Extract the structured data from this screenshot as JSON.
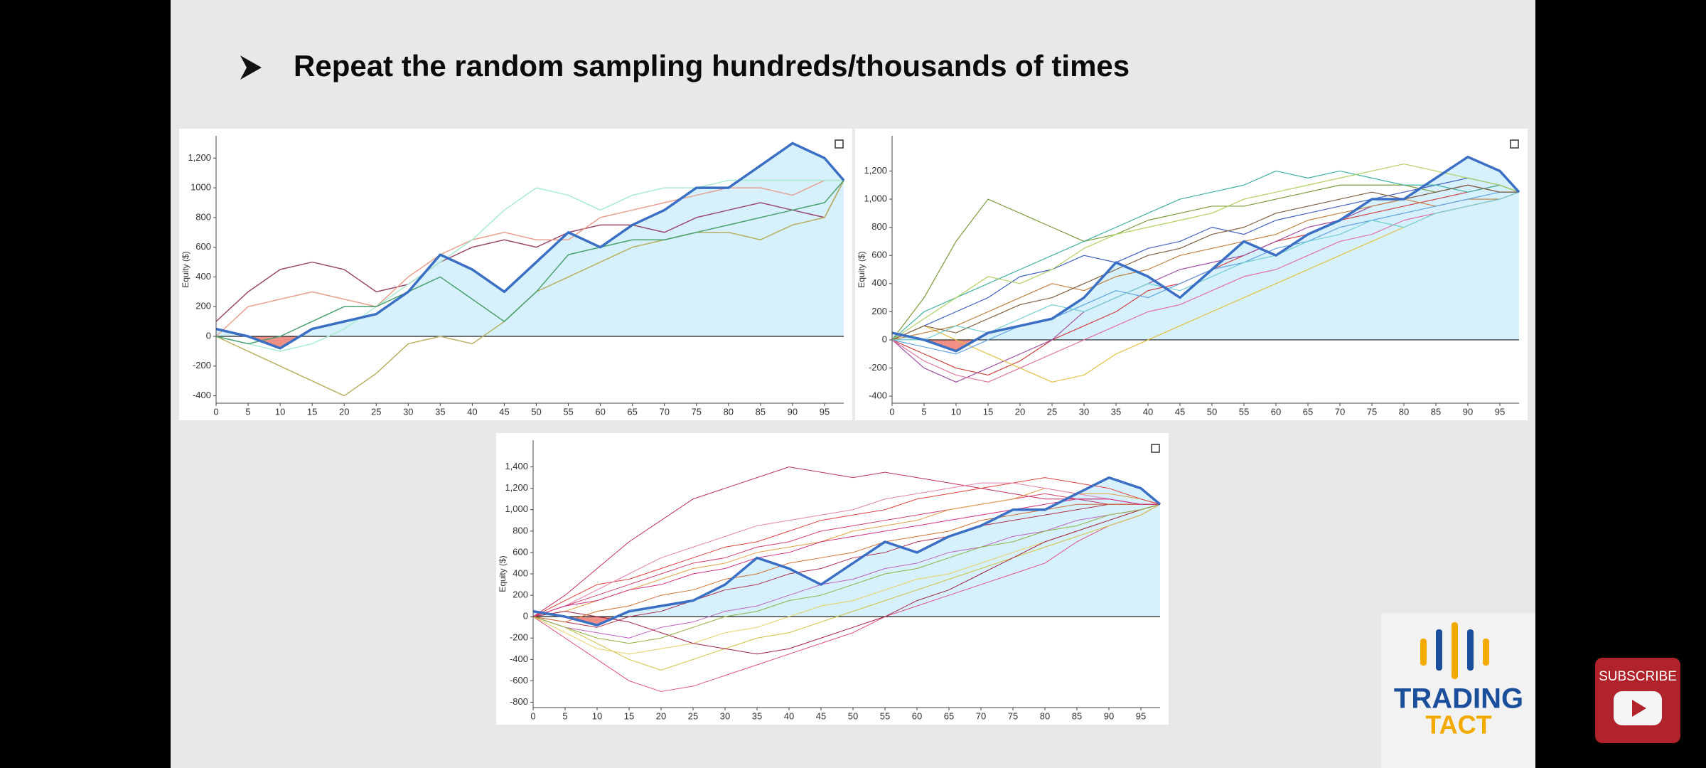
{
  "header": {
    "title": "Repeat the random sampling hundreds/thousands of times"
  },
  "chart_data": [
    {
      "type": "line",
      "y_label": "Equity ($)",
      "x": [
        0,
        5,
        10,
        15,
        20,
        25,
        30,
        35,
        40,
        45,
        50,
        55,
        60,
        65,
        70,
        75,
        80,
        85,
        90,
        95,
        98
      ],
      "xlim": [
        0,
        98
      ],
      "ylim": [
        -450,
        1350
      ],
      "xticks": [
        0,
        5,
        10,
        15,
        20,
        25,
        30,
        35,
        40,
        45,
        50,
        55,
        60,
        65,
        70,
        75,
        80,
        85,
        90,
        95
      ],
      "yticks": [
        -400,
        -200,
        0,
        200,
        400,
        600,
        800,
        1000,
        {
          "value": 1200,
          "label": "1,200"
        }
      ],
      "fill": {
        "positive_color": "#d6f1fb",
        "negative_color": "#ef8f86"
      },
      "series": [
        {
          "color": "#9b4a6e",
          "width": 1.5,
          "values": [
            100,
            300,
            450,
            500,
            450,
            300,
            350,
            500,
            600,
            650,
            600,
            700,
            750,
            750,
            700,
            800,
            850,
            900,
            850,
            800,
            1050
          ]
        },
        {
          "color": "#e8a090",
          "width": 1.5,
          "values": [
            0,
            200,
            250,
            300,
            250,
            200,
            400,
            550,
            650,
            700,
            650,
            650,
            800,
            850,
            900,
            950,
            1000,
            1000,
            950,
            1050,
            1050
          ]
        },
        {
          "color": "#a8ecd0",
          "width": 1.5,
          "values": [
            0,
            -50,
            -100,
            -50,
            50,
            200,
            350,
            500,
            650,
            850,
            1000,
            950,
            850,
            950,
            1000,
            1000,
            1050,
            1050,
            1050,
            1050,
            1050
          ]
        },
        {
          "color": "#b8b060",
          "width": 1.5,
          "values": [
            0,
            -100,
            -200,
            -300,
            -400,
            -250,
            -50,
            0,
            -50,
            100,
            300,
            400,
            500,
            600,
            650,
            700,
            700,
            650,
            750,
            800,
            1050
          ]
        },
        {
          "color": "#4aa070",
          "width": 1.5,
          "values": [
            0,
            -50,
            0,
            100,
            200,
            200,
            300,
            400,
            250,
            100,
            300,
            550,
            600,
            650,
            650,
            700,
            750,
            800,
            850,
            900,
            1050
          ]
        },
        {
          "color": "#3b6fc4",
          "width": 3.5,
          "area": true,
          "values": [
            50,
            0,
            -80,
            50,
            100,
            150,
            300,
            550,
            450,
            300,
            500,
            700,
            600,
            750,
            850,
            1000,
            1000,
            1150,
            1300,
            1200,
            1050
          ]
        }
      ]
    },
    {
      "type": "line",
      "y_label": "Equity ($)",
      "x": [
        0,
        5,
        10,
        15,
        20,
        25,
        30,
        35,
        40,
        45,
        50,
        55,
        60,
        65,
        70,
        75,
        80,
        85,
        90,
        95,
        98
      ],
      "xlim": [
        0,
        98
      ],
      "ylim": [
        -450,
        1450
      ],
      "xticks": [
        0,
        5,
        10,
        15,
        20,
        25,
        30,
        35,
        40,
        45,
        50,
        55,
        60,
        65,
        70,
        75,
        80,
        85,
        90,
        95
      ],
      "yticks": [
        -400,
        -200,
        0,
        200,
        400,
        600,
        800,
        {
          "value": 1000,
          "label": "1,000"
        },
        {
          "value": 1200,
          "label": "1,200"
        }
      ],
      "fill": {
        "positive_color": "#d6f1fb",
        "negative_color": "#ef8f86"
      },
      "series": [
        {
          "color": "#7a9a3a",
          "width": 1.2,
          "values": [
            0,
            300,
            700,
            1000,
            900,
            800,
            700,
            750,
            850,
            900,
            950,
            950,
            1000,
            1050,
            1100,
            1100,
            1100,
            1050,
            1100,
            1050,
            1050
          ]
        },
        {
          "color": "#d04040",
          "width": 1.2,
          "values": [
            0,
            -100,
            -200,
            -250,
            -150,
            0,
            100,
            200,
            350,
            400,
            500,
            600,
            700,
            750,
            850,
            900,
            950,
            1000,
            1050,
            1100,
            1050
          ]
        },
        {
          "color": "#4060c0",
          "width": 1.2,
          "values": [
            0,
            100,
            200,
            300,
            450,
            500,
            600,
            550,
            650,
            700,
            800,
            750,
            850,
            900,
            950,
            1000,
            1050,
            1100,
            1150,
            1100,
            1050
          ]
        },
        {
          "color": "#a050a0",
          "width": 1.2,
          "values": [
            0,
            -200,
            -300,
            -200,
            -100,
            0,
            200,
            300,
            400,
            500,
            550,
            600,
            700,
            800,
            850,
            950,
            1000,
            1050,
            1100,
            1050,
            1050
          ]
        },
        {
          "color": "#e0c040",
          "width": 1.2,
          "values": [
            0,
            100,
            0,
            -100,
            -200,
            -300,
            -250,
            -100,
            0,
            100,
            200,
            300,
            400,
            500,
            600,
            700,
            800,
            900,
            950,
            1000,
            1050
          ]
        },
        {
          "color": "#40b0a0",
          "width": 1.2,
          "values": [
            0,
            200,
            300,
            400,
            500,
            600,
            700,
            800,
            900,
            1000,
            1050,
            1100,
            1200,
            1150,
            1200,
            1150,
            1100,
            1100,
            1050,
            1100,
            1050
          ]
        },
        {
          "color": "#c08040",
          "width": 1.2,
          "values": [
            0,
            50,
            100,
            200,
            300,
            400,
            350,
            450,
            500,
            600,
            650,
            700,
            750,
            850,
            900,
            950,
            1000,
            950,
            1000,
            1000,
            1050
          ]
        },
        {
          "color": "#60a0e0",
          "width": 1.2,
          "values": [
            0,
            -50,
            -100,
            0,
            100,
            150,
            250,
            350,
            300,
            400,
            500,
            550,
            650,
            700,
            800,
            850,
            900,
            950,
            1000,
            1050,
            1050
          ]
        },
        {
          "color": "#b0d060",
          "width": 1.2,
          "values": [
            0,
            150,
            300,
            450,
            400,
            500,
            650,
            750,
            800,
            850,
            900,
            1000,
            1050,
            1100,
            1150,
            1200,
            1250,
            1200,
            1150,
            1100,
            1050
          ]
        },
        {
          "color": "#e070a0",
          "width": 1.2,
          "values": [
            0,
            -150,
            -250,
            -300,
            -200,
            -100,
            0,
            100,
            200,
            250,
            350,
            450,
            500,
            600,
            700,
            750,
            850,
            900,
            950,
            1000,
            1050
          ]
        },
        {
          "color": "#806040",
          "width": 1.2,
          "values": [
            0,
            100,
            50,
            150,
            250,
            300,
            400,
            500,
            600,
            650,
            750,
            800,
            900,
            950,
            1000,
            1050,
            1000,
            1050,
            1100,
            1050,
            1050
          ]
        },
        {
          "color": "#70d0d0",
          "width": 1.2,
          "values": [
            0,
            0,
            100,
            50,
            150,
            250,
            200,
            300,
            400,
            350,
            450,
            550,
            600,
            700,
            750,
            850,
            800,
            900,
            950,
            1000,
            1050
          ]
        },
        {
          "color": "#3b6fc4",
          "width": 3.5,
          "area": true,
          "values": [
            50,
            0,
            -80,
            50,
            100,
            150,
            300,
            550,
            450,
            300,
            500,
            700,
            600,
            750,
            850,
            1000,
            1000,
            1150,
            1300,
            1200,
            1050
          ]
        }
      ]
    },
    {
      "type": "line",
      "y_label": "Equity ($)",
      "x": [
        0,
        5,
        10,
        15,
        20,
        25,
        30,
        35,
        40,
        45,
        50,
        55,
        60,
        65,
        70,
        75,
        80,
        85,
        90,
        95,
        98
      ],
      "xlim": [
        0,
        98
      ],
      "ylim": [
        -850,
        1650
      ],
      "xticks": [
        0,
        5,
        10,
        15,
        20,
        25,
        30,
        35,
        40,
        45,
        50,
        55,
        60,
        65,
        70,
        75,
        80,
        85,
        90,
        95
      ],
      "yticks": [
        -800,
        -600,
        -400,
        -200,
        0,
        200,
        400,
        600,
        800,
        {
          "value": 1000,
          "label": "1,000"
        },
        {
          "value": 1200,
          "label": "1,200"
        },
        {
          "value": 1400,
          "label": "1,400"
        }
      ],
      "fill": {
        "positive_color": "#d6f1fb",
        "negative_color": "#ef8f86"
      },
      "series": [
        {
          "color": "#c03060",
          "width": 1,
          "values": [
            0,
            200,
            450,
            700,
            900,
            1100,
            1200,
            1300,
            1400,
            1350,
            1300,
            1350,
            1300,
            1250,
            1200,
            1150,
            1100,
            1100,
            1050,
            1050,
            1050
          ]
        },
        {
          "color": "#e05080",
          "width": 1,
          "values": [
            0,
            -200,
            -400,
            -600,
            -700,
            -650,
            -550,
            -450,
            -350,
            -250,
            -150,
            0,
            100,
            200,
            300,
            400,
            500,
            700,
            850,
            950,
            1050
          ]
        },
        {
          "color": "#d0c040",
          "width": 1,
          "values": [
            0,
            -100,
            -250,
            -400,
            -500,
            -400,
            -300,
            -200,
            -150,
            -50,
            50,
            150,
            250,
            350,
            450,
            550,
            650,
            750,
            850,
            950,
            1050
          ]
        },
        {
          "color": "#d04070",
          "width": 1,
          "values": [
            0,
            100,
            200,
            300,
            400,
            500,
            550,
            650,
            700,
            800,
            850,
            900,
            950,
            1000,
            1050,
            1100,
            1150,
            1100,
            1100,
            1050,
            1050
          ]
        },
        {
          "color": "#b03050",
          "width": 1,
          "values": [
            0,
            -50,
            -100,
            0,
            50,
            150,
            250,
            300,
            400,
            450,
            550,
            600,
            700,
            750,
            850,
            900,
            950,
            1000,
            1050,
            1050,
            1050
          ]
        },
        {
          "color": "#e0a040",
          "width": 1,
          "values": [
            0,
            50,
            150,
            250,
            350,
            450,
            500,
            600,
            650,
            700,
            800,
            850,
            900,
            1000,
            1050,
            1100,
            1200,
            1150,
            1150,
            1100,
            1050
          ]
        },
        {
          "color": "#c060c0",
          "width": 1,
          "values": [
            0,
            -100,
            -150,
            -200,
            -100,
            -50,
            50,
            100,
            200,
            300,
            350,
            450,
            500,
            600,
            650,
            750,
            800,
            900,
            950,
            1000,
            1050
          ]
        },
        {
          "color": "#e04040",
          "width": 1,
          "values": [
            0,
            150,
            300,
            350,
            450,
            550,
            650,
            700,
            800,
            900,
            950,
            1000,
            1100,
            1150,
            1200,
            1250,
            1300,
            1250,
            1200,
            1100,
            1050
          ]
        },
        {
          "color": "#e8d060",
          "width": 1,
          "values": [
            0,
            -150,
            -300,
            -350,
            -300,
            -250,
            -150,
            -100,
            0,
            100,
            150,
            250,
            350,
            400,
            500,
            600,
            700,
            800,
            900,
            1000,
            1050
          ]
        },
        {
          "color": "#a02040",
          "width": 1,
          "values": [
            0,
            50,
            0,
            -50,
            -150,
            -250,
            -300,
            -350,
            -300,
            -200,
            -100,
            0,
            150,
            250,
            400,
            550,
            700,
            800,
            900,
            1000,
            1050
          ]
        },
        {
          "color": "#e080b0",
          "width": 1,
          "values": [
            0,
            100,
            250,
            400,
            550,
            650,
            750,
            850,
            900,
            950,
            1000,
            1100,
            1150,
            1200,
            1250,
            1250,
            1200,
            1150,
            1100,
            1050,
            1050
          ]
        },
        {
          "color": "#d07030",
          "width": 1,
          "values": [
            0,
            -50,
            50,
            100,
            200,
            250,
            350,
            400,
            500,
            550,
            600,
            700,
            750,
            800,
            900,
            950,
            1000,
            1050,
            1050,
            1050,
            1050
          ]
        },
        {
          "color": "#90b040",
          "width": 1,
          "values": [
            0,
            -100,
            -200,
            -250,
            -200,
            -100,
            0,
            50,
            150,
            200,
            300,
            400,
            450,
            550,
            650,
            700,
            800,
            850,
            950,
            1000,
            1050
          ]
        },
        {
          "color": "#d03080",
          "width": 1,
          "values": [
            0,
            100,
            150,
            250,
            300,
            400,
            450,
            550,
            600,
            700,
            750,
            800,
            850,
            900,
            950,
            1000,
            1050,
            1100,
            1100,
            1050,
            1050
          ]
        },
        {
          "color": "#3b6fc4",
          "width": 3.5,
          "area": true,
          "values": [
            50,
            0,
            -80,
            50,
            100,
            150,
            300,
            550,
            450,
            300,
            500,
            700,
            600,
            750,
            850,
            1000,
            1000,
            1150,
            1300,
            1200,
            1050
          ]
        }
      ]
    }
  ],
  "branding": {
    "logo_line1": "TRADING",
    "logo_line2": "TACT",
    "subscribe": "SUBSCRIBE"
  }
}
